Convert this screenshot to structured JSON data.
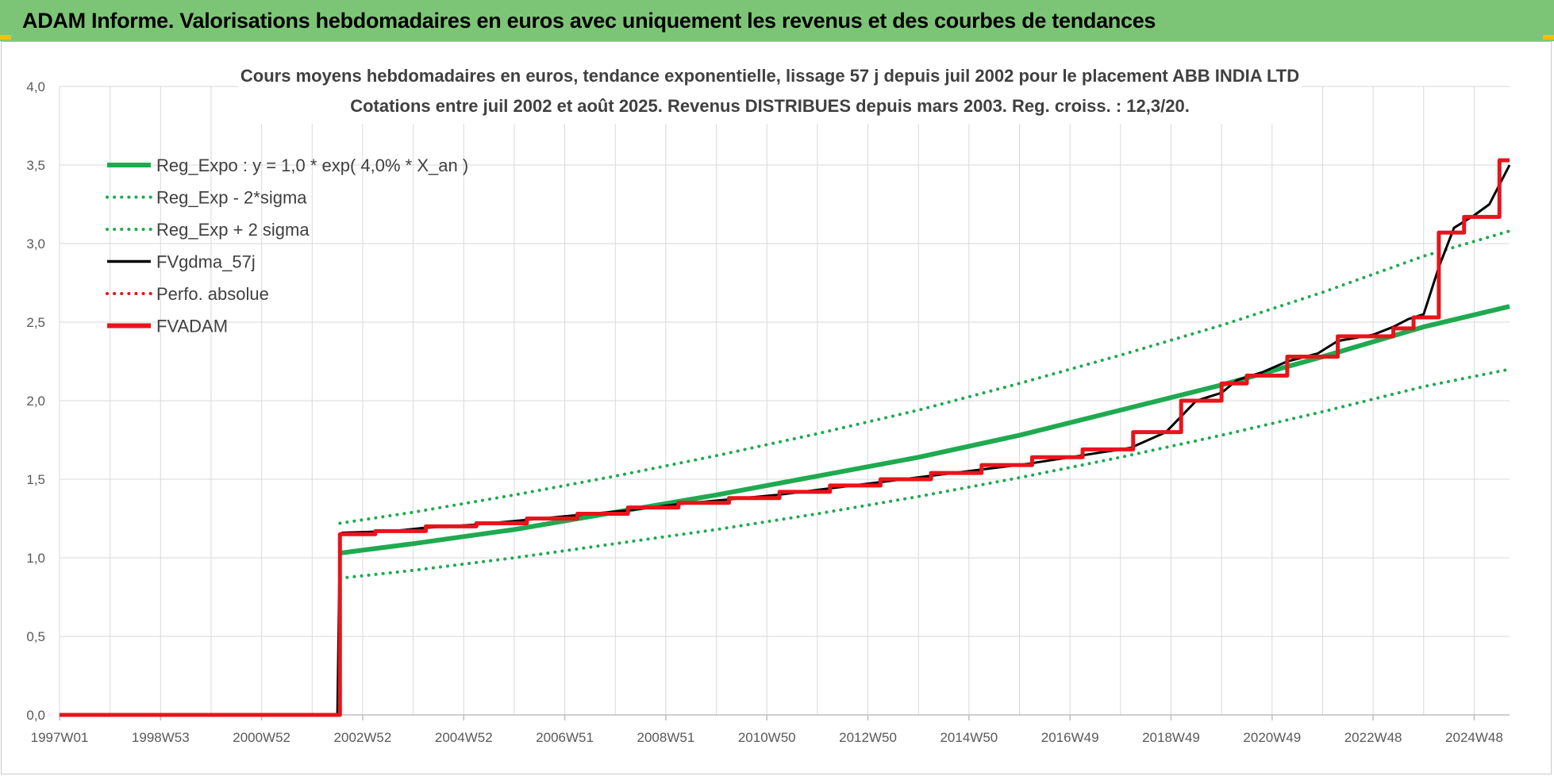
{
  "banner": {
    "title": "ADAM Informe. Valorisations hebdomadaires en euros avec uniquement les revenus et des courbes de tendances"
  },
  "colors": {
    "banner_bg": "#7cc576",
    "trend_green": "#1faa50",
    "fv_black": "#000000",
    "adam_red": "#e8141b",
    "grid": "#d9d9d9"
  },
  "chart_data": {
    "type": "line",
    "title_lines": [
      "Cours moyens hebdomadaires en euros, tendance exponentielle, lissage 57 j depuis juil 2002 pour le placement ABB INDIA LTD",
      "Cotations entre juil 2002 et août 2025. Revenus DISTRIBUES depuis mars 2003. Reg. croiss. : 12,3/20."
    ],
    "xlabel": "",
    "ylabel": "",
    "x_range": [
      1997.0,
      2025.7
    ],
    "ylim": [
      0,
      4.0
    ],
    "y_ticks": [
      "0,0",
      "0,5",
      "1,0",
      "1,5",
      "2,0",
      "2,5",
      "3,0",
      "3,5",
      "4,0"
    ],
    "x_ticks": [
      {
        "label": "1997W01",
        "x": 1997.0
      },
      {
        "label": "1998W53",
        "x": 1999.0
      },
      {
        "label": "2000W52",
        "x": 2001.0
      },
      {
        "label": "2002W52",
        "x": 2003.0
      },
      {
        "label": "2004W52",
        "x": 2005.0
      },
      {
        "label": "2006W51",
        "x": 2007.0
      },
      {
        "label": "2008W51",
        "x": 2009.0
      },
      {
        "label": "2010W50",
        "x": 2011.0
      },
      {
        "label": "2012W50",
        "x": 2013.0
      },
      {
        "label": "2014W50",
        "x": 2015.0
      },
      {
        "label": "2016W49",
        "x": 2017.0
      },
      {
        "label": "2018W49",
        "x": 2019.0
      },
      {
        "label": "2020W49",
        "x": 2021.0
      },
      {
        "label": "2022W48",
        "x": 2023.0
      },
      {
        "label": "2024W48",
        "x": 2025.0
      }
    ],
    "grid": true,
    "legend_position": "top-left",
    "series": [
      {
        "name": "Reg_Expo : y = 1,0 * exp( 4,0% *  X_an )",
        "color": "#1faa50",
        "style": "solid",
        "width": 6,
        "x": [
          2002.55,
          2004,
          2006,
          2008,
          2010,
          2012,
          2014,
          2016,
          2018,
          2020,
          2022,
          2024,
          2025.7
        ],
        "y": [
          1.03,
          1.09,
          1.18,
          1.29,
          1.4,
          1.52,
          1.64,
          1.78,
          1.94,
          2.1,
          2.28,
          2.47,
          2.6
        ]
      },
      {
        "name": "Reg_Exp - 2*sigma",
        "color": "#1faa50",
        "style": "dotted",
        "width": 4,
        "x": [
          2002.55,
          2004,
          2006,
          2008,
          2010,
          2012,
          2014,
          2016,
          2018,
          2020,
          2022,
          2024,
          2025.7
        ],
        "y": [
          0.87,
          0.92,
          1.0,
          1.09,
          1.18,
          1.28,
          1.39,
          1.51,
          1.64,
          1.78,
          1.93,
          2.09,
          2.2
        ]
      },
      {
        "name": "Reg_Exp + 2 sigma",
        "color": "#1faa50",
        "style": "dotted",
        "width": 4,
        "x": [
          2002.55,
          2004,
          2006,
          2008,
          2010,
          2012,
          2014,
          2016,
          2018,
          2020,
          2022,
          2024,
          2025.7
        ],
        "y": [
          1.22,
          1.29,
          1.4,
          1.52,
          1.65,
          1.79,
          1.94,
          2.11,
          2.29,
          2.48,
          2.69,
          2.92,
          3.08
        ]
      },
      {
        "name": "FVgdma_57j",
        "color": "#000000",
        "style": "solid",
        "width": 3,
        "x": [
          1997.0,
          2002.5,
          2002.55,
          2002.6,
          2003.6,
          2004.2,
          2005.2,
          2006.2,
          2007.2,
          2008.2,
          2009.2,
          2010.2,
          2011.2,
          2012.2,
          2013.2,
          2014.2,
          2015.2,
          2016.2,
          2017.2,
          2018.2,
          2018.9,
          2019.2,
          2019.5,
          2020.0,
          2020.3,
          2020.8,
          2021.3,
          2021.9,
          2022.3,
          2023.0,
          2023.4,
          2023.7,
          2024.0,
          2024.3,
          2024.6,
          2025.0,
          2025.3,
          2025.7
        ],
        "y": [
          0.0,
          0.0,
          1.15,
          1.16,
          1.17,
          1.19,
          1.21,
          1.24,
          1.27,
          1.3,
          1.34,
          1.37,
          1.4,
          1.44,
          1.48,
          1.52,
          1.56,
          1.6,
          1.65,
          1.7,
          1.8,
          1.9,
          2.0,
          2.05,
          2.13,
          2.18,
          2.25,
          2.3,
          2.38,
          2.42,
          2.47,
          2.52,
          2.55,
          2.85,
          3.1,
          3.18,
          3.25,
          3.5
        ]
      },
      {
        "name": "Perfo. absolue",
        "color": "#e8141b",
        "style": "dotted",
        "width": 3,
        "x": [],
        "y": []
      },
      {
        "name": "FVADAM",
        "color": "#e8141b",
        "style": "step",
        "width": 5,
        "x": [
          1997.0,
          2002.5,
          2002.55,
          2003.25,
          2004.25,
          2005.25,
          2006.25,
          2007.25,
          2008.25,
          2009.25,
          2010.25,
          2011.25,
          2012.25,
          2013.25,
          2014.25,
          2015.25,
          2016.25,
          2017.25,
          2018.25,
          2019.2,
          2020.0,
          2020.5,
          2021.3,
          2022.3,
          2023.4,
          2023.8,
          2024.3,
          2024.8,
          2025.5,
          2025.7
        ],
        "y": [
          0.0,
          0.0,
          1.15,
          1.17,
          1.2,
          1.22,
          1.25,
          1.28,
          1.32,
          1.35,
          1.38,
          1.42,
          1.46,
          1.5,
          1.54,
          1.59,
          1.64,
          1.69,
          1.8,
          2.0,
          2.11,
          2.16,
          2.28,
          2.41,
          2.46,
          2.53,
          3.07,
          3.17,
          3.53,
          3.53
        ]
      }
    ]
  }
}
